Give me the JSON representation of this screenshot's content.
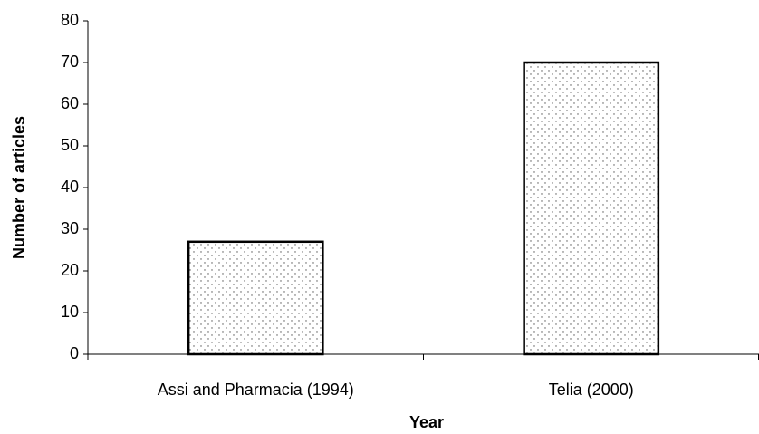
{
  "chart_data": {
    "type": "bar",
    "categories": [
      "Assi and Pharmacia (1994)",
      "Telia (2000)"
    ],
    "values": [
      27,
      70
    ],
    "color": "#ffffff",
    "pattern": "dots",
    "ylim": [
      0,
      80
    ],
    "yticks": [
      0,
      10,
      20,
      30,
      40,
      50,
      60,
      70,
      80
    ],
    "ylabel": "Number of articles",
    "xlabel": "Year",
    "grid": false
  }
}
